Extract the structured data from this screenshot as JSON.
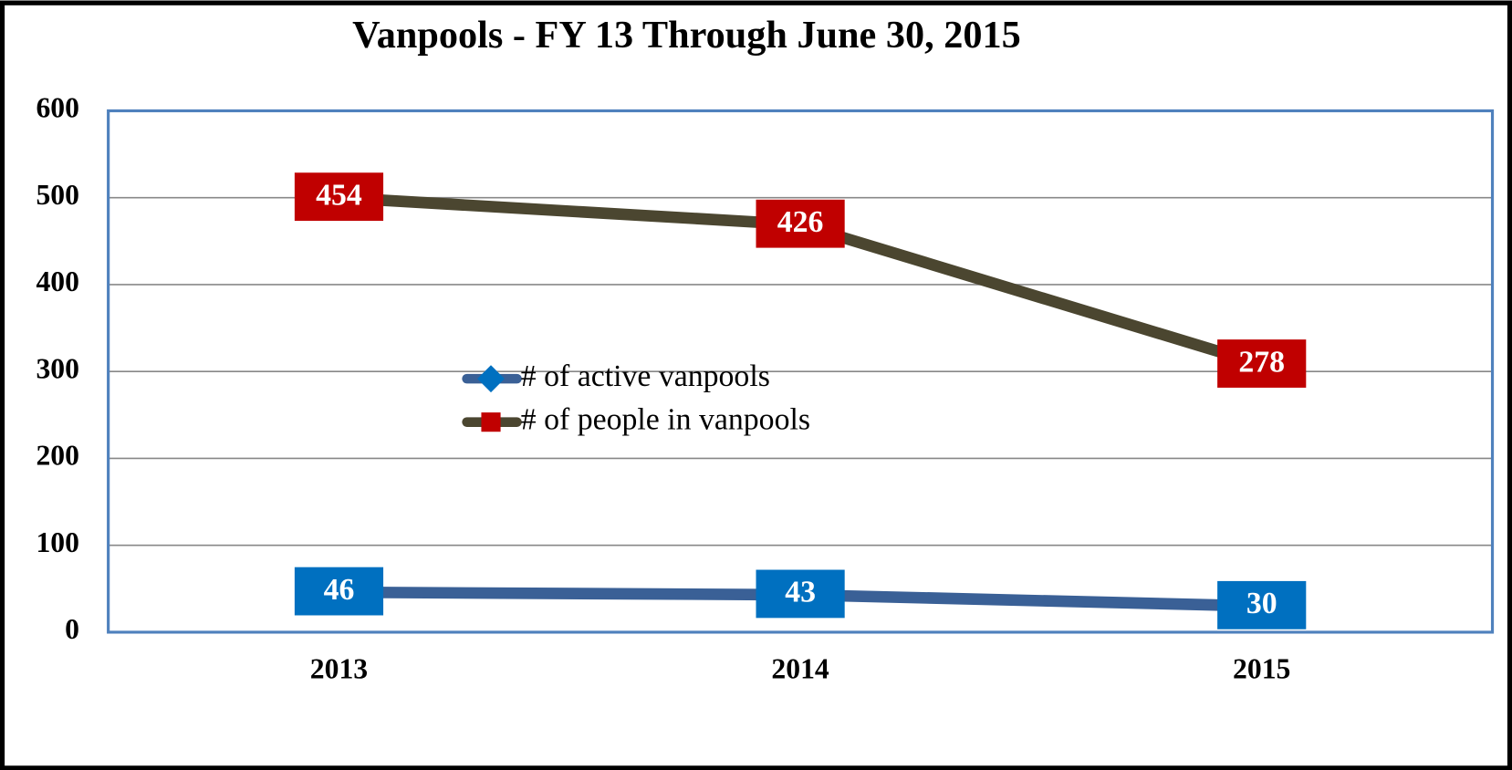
{
  "chart_data": {
    "type": "line",
    "stacked": true,
    "title": "Vanpools - FY 13 Through June 30, 2015",
    "categories": [
      "2013",
      "2014",
      "2015"
    ],
    "series": [
      {
        "name": "# of active vanpools",
        "color": "#3a6096",
        "label_color": "#0070c0",
        "values": [
          46,
          43,
          30
        ]
      },
      {
        "name": "# of people in vanpools",
        "color": "#4b4630",
        "label_color": "#c00000",
        "values": [
          454,
          426,
          278
        ]
      }
    ],
    "ylim": [
      0,
      600
    ],
    "yticks": [
      0,
      100,
      200,
      300,
      400,
      500,
      600
    ],
    "grid": true
  }
}
